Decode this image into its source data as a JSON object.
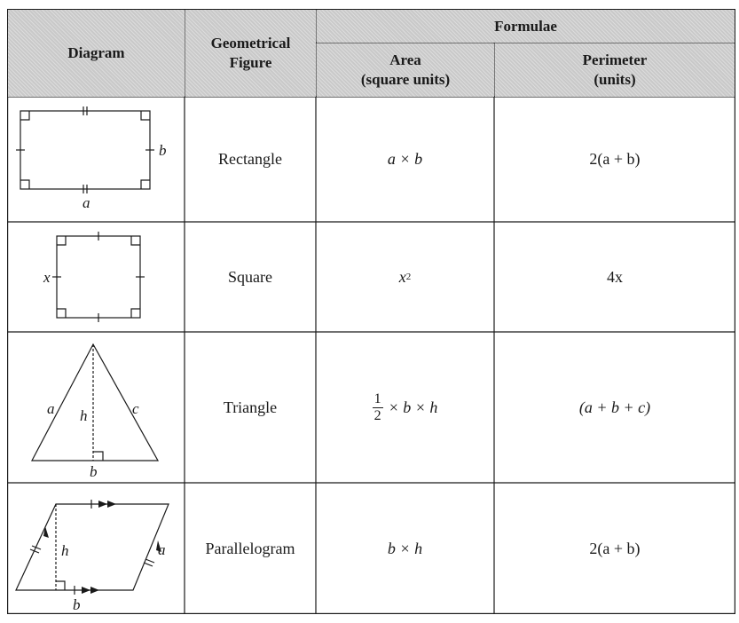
{
  "header": {
    "diagram": "Diagram",
    "figure_line1": "Geometrical",
    "figure_line2": "Figure",
    "formulae": "Formulae",
    "area_line1": "Area",
    "area_line2": "(square units)",
    "perimeter_line1": "Perimeter",
    "perimeter_line2": "(units)"
  },
  "rows": [
    {
      "figure": "Rectangle",
      "area": "a × b",
      "perimeter": "2(a + b)",
      "labels": {
        "a": "a",
        "b": "b"
      }
    },
    {
      "figure": "Square",
      "area_base": "x",
      "area_exp": "2",
      "perimeter": "4x",
      "labels": {
        "x": "x"
      }
    },
    {
      "figure": "Triangle",
      "area_num": "1",
      "area_den": "2",
      "area_rest": "× b × h",
      "perimeter": "(a + b + c)",
      "labels": {
        "a": "a",
        "b": "b",
        "c": "c",
        "h": "h"
      }
    },
    {
      "figure": "Parallelogram",
      "area": "b × h",
      "perimeter": "2(a + b)",
      "labels": {
        "a": "a",
        "b": "b",
        "h": "h"
      }
    }
  ]
}
